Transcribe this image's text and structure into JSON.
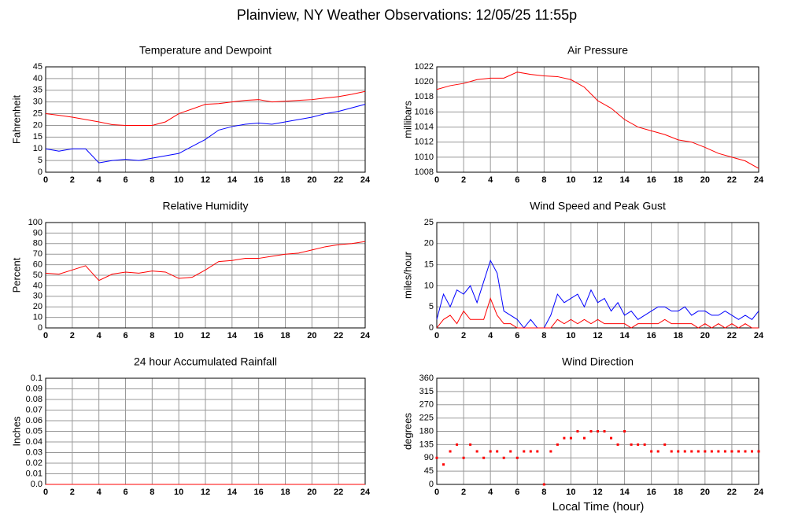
{
  "title": "Plainview, NY Weather Observations: 12/05/25 11:55p",
  "xlabel": "Local Time (hour)",
  "chart_data": [
    {
      "type": "line",
      "title": "Temperature and Dewpoint",
      "ylabel": "Fahrenheit",
      "x": [
        0,
        1,
        2,
        3,
        4,
        5,
        6,
        7,
        8,
        9,
        10,
        11,
        12,
        13,
        14,
        15,
        16,
        17,
        18,
        19,
        20,
        21,
        22,
        23,
        24
      ],
      "series": [
        {
          "color": "#ff0000",
          "values": [
            25,
            24.3,
            23.5,
            22.5,
            21.5,
            20.3,
            20,
            20,
            20,
            21.5,
            25,
            27,
            29,
            29.3,
            30,
            30.7,
            31,
            30,
            30.3,
            30.7,
            31,
            31.7,
            32.3,
            33.3,
            34.5
          ]
        },
        {
          "color": "#0000ff",
          "values": [
            10,
            9,
            10,
            10,
            4,
            5,
            5.5,
            5,
            6,
            7,
            8,
            11,
            14,
            18,
            19.5,
            20.5,
            21,
            20.5,
            21.5,
            22.5,
            23.5,
            25,
            26,
            27.5,
            29
          ]
        }
      ],
      "xlim": [
        0,
        24
      ],
      "xticks": [
        0,
        2,
        4,
        6,
        8,
        10,
        12,
        14,
        16,
        18,
        20,
        22,
        24
      ],
      "ylim": [
        0,
        45
      ],
      "yticks": [
        0,
        5,
        10,
        15,
        20,
        25,
        30,
        35,
        40,
        45
      ],
      "grid": true
    },
    {
      "type": "line",
      "title": "Air Pressure",
      "ylabel": "millibars",
      "x": [
        0,
        1,
        2,
        3,
        4,
        5,
        6,
        7,
        8,
        9,
        10,
        11,
        12,
        13,
        14,
        15,
        16,
        17,
        18,
        19,
        20,
        21,
        22,
        23,
        24
      ],
      "series": [
        {
          "color": "#ff0000",
          "values": [
            1019,
            1019.5,
            1019.8,
            1020.3,
            1020.5,
            1020.5,
            1021.3,
            1021,
            1020.8,
            1020.7,
            1020.3,
            1019.3,
            1017.5,
            1016.5,
            1015,
            1014,
            1013.5,
            1013,
            1012.3,
            1012,
            1011.3,
            1010.5,
            1010,
            1009.5,
            1008.5
          ]
        }
      ],
      "xlim": [
        0,
        24
      ],
      "xticks": [
        0,
        2,
        4,
        6,
        8,
        10,
        12,
        14,
        16,
        18,
        20,
        22,
        24
      ],
      "ylim": [
        1008,
        1022
      ],
      "yticks": [
        1008,
        1010,
        1012,
        1014,
        1016,
        1018,
        1020,
        1022
      ],
      "grid": true
    },
    {
      "type": "line",
      "title": "Relative Humidity",
      "ylabel": "Percent",
      "x": [
        0,
        1,
        2,
        3,
        4,
        5,
        6,
        7,
        8,
        9,
        10,
        11,
        12,
        13,
        14,
        15,
        16,
        17,
        18,
        19,
        20,
        21,
        22,
        23,
        24
      ],
      "series": [
        {
          "color": "#ff0000",
          "values": [
            52,
            51,
            55,
            59,
            45,
            51,
            53,
            52,
            54,
            53,
            47,
            48,
            55,
            63,
            64,
            66,
            66,
            68,
            70,
            71,
            74,
            77,
            79,
            80,
            82
          ]
        }
      ],
      "xlim": [
        0,
        24
      ],
      "xticks": [
        0,
        2,
        4,
        6,
        8,
        10,
        12,
        14,
        16,
        18,
        20,
        22,
        24
      ],
      "ylim": [
        0,
        100
      ],
      "yticks": [
        0,
        10,
        20,
        30,
        40,
        50,
        60,
        70,
        80,
        90,
        100
      ],
      "grid": true
    },
    {
      "type": "line",
      "title": "Wind Speed and Peak Gust",
      "ylabel": "miles/hour",
      "x": [
        0,
        0.5,
        1,
        1.5,
        2,
        2.5,
        3,
        3.5,
        4,
        4.5,
        5,
        5.5,
        6,
        6.5,
        7,
        7.5,
        8,
        8.5,
        9,
        9.5,
        10,
        10.5,
        11,
        11.5,
        12,
        12.5,
        13,
        13.5,
        14,
        14.5,
        15,
        15.5,
        16,
        16.5,
        17,
        17.5,
        18,
        18.5,
        19,
        19.5,
        20,
        20.5,
        21,
        21.5,
        22,
        22.5,
        23,
        23.5,
        24
      ],
      "series": [
        {
          "color": "#0000ff",
          "values": [
            2,
            8,
            5,
            9,
            8,
            10,
            6,
            11,
            16,
            13,
            4,
            3,
            2,
            0,
            2,
            0,
            0,
            3,
            8,
            6,
            7,
            8,
            5,
            9,
            6,
            7,
            4,
            6,
            3,
            4,
            2,
            3,
            4,
            5,
            5,
            4,
            4,
            5,
            3,
            4,
            4,
            3,
            3,
            4,
            3,
            2,
            3,
            2,
            4
          ]
        },
        {
          "color": "#ff0000",
          "values": [
            0,
            2,
            3,
            1,
            4,
            2,
            2,
            2,
            7,
            3,
            1,
            1,
            0,
            0,
            0,
            0,
            0,
            0,
            2,
            1,
            2,
            1,
            2,
            1,
            2,
            1,
            1,
            1,
            1,
            0,
            1,
            1,
            1,
            1,
            2,
            1,
            1,
            1,
            1,
            0,
            1,
            0,
            1,
            0,
            1,
            0,
            1,
            0,
            0
          ]
        }
      ],
      "xlim": [
        0,
        24
      ],
      "xticks": [
        0,
        2,
        4,
        6,
        8,
        10,
        12,
        14,
        16,
        18,
        20,
        22,
        24
      ],
      "ylim": [
        0,
        25
      ],
      "yticks": [
        0,
        5,
        10,
        15,
        20,
        25
      ],
      "grid": true
    },
    {
      "type": "line",
      "title": "24 hour Accumulated Rainfall",
      "ylabel": "Inches",
      "x": [
        0,
        24
      ],
      "series": [
        {
          "color": "#ff0000",
          "values": [
            0,
            0
          ]
        }
      ],
      "xlim": [
        0,
        24
      ],
      "xticks": [
        0,
        2,
        4,
        6,
        8,
        10,
        12,
        14,
        16,
        18,
        20,
        22,
        24
      ],
      "ylim": [
        0,
        0.1
      ],
      "yticks": [
        {
          "value": 0,
          "label": "0.0"
        },
        0.01,
        0.02,
        0.03,
        0.04,
        0.05,
        0.06,
        0.07,
        0.08,
        0.09,
        0.1
      ],
      "grid": true
    },
    {
      "type": "scatter",
      "title": "Wind Direction",
      "ylabel": "degrees",
      "color": "#ff0000",
      "x": [
        0,
        0.5,
        1,
        1.5,
        2,
        2.5,
        3,
        3.5,
        4,
        4.5,
        5,
        5.5,
        6,
        6.5,
        7,
        7.5,
        8,
        8.5,
        9,
        9.5,
        10,
        10.5,
        11,
        11.5,
        12,
        12.5,
        13,
        13.5,
        14,
        14.5,
        15,
        15.5,
        16,
        16.5,
        17,
        17.5,
        18,
        18.5,
        19,
        19.5,
        20,
        20.5,
        21,
        21.5,
        22,
        22.5,
        23,
        23.5,
        24
      ],
      "values": [
        90,
        67.5,
        112,
        135,
        90,
        135,
        112,
        90,
        112,
        112,
        90,
        112,
        90,
        112,
        112,
        112,
        0,
        112,
        135,
        157,
        157,
        180,
        157,
        180,
        180,
        180,
        157,
        135,
        180,
        135,
        135,
        135,
        112,
        112,
        135,
        112,
        112,
        112,
        112,
        112,
        112,
        112,
        112,
        112,
        112,
        112,
        112,
        112,
        112
      ],
      "xlim": [
        0,
        24
      ],
      "xticks": [
        0,
        2,
        4,
        6,
        8,
        10,
        12,
        14,
        16,
        18,
        20,
        22,
        24
      ],
      "ylim": [
        0,
        360
      ],
      "yticks": [
        0,
        45,
        90,
        135,
        180,
        225,
        270,
        315,
        360
      ],
      "grid": true
    }
  ]
}
